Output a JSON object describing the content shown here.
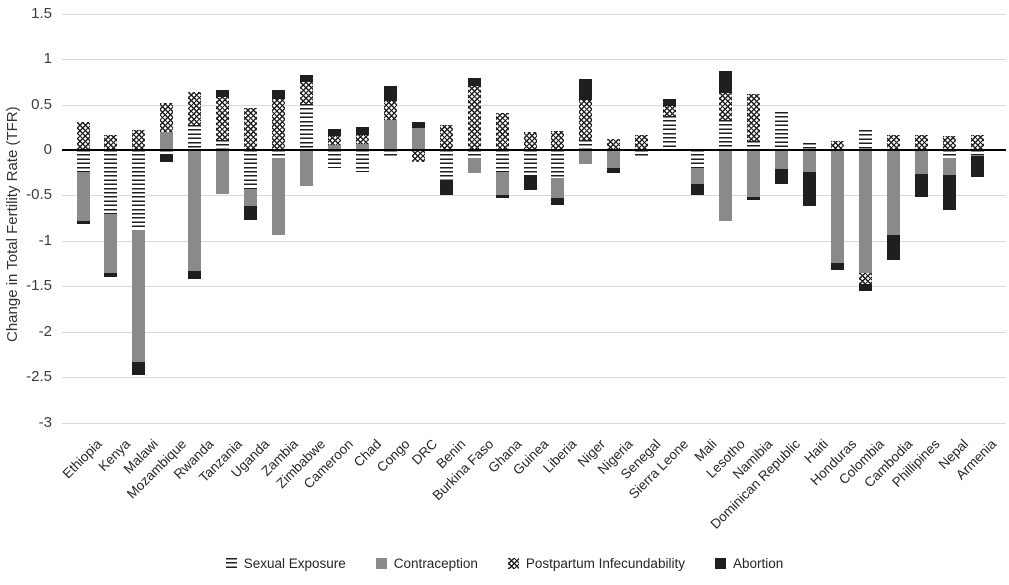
{
  "chart_data": {
    "type": "bar",
    "stacked": true,
    "title": "",
    "xlabel": "",
    "ylabel": "Change in Total Fertility Rate (TFR)",
    "ylim": [
      -3,
      1.5
    ],
    "yticks": [
      1.5,
      1,
      0.5,
      0,
      -0.5,
      -1,
      -1.5,
      -2,
      -2.5,
      -3
    ],
    "grid": true,
    "legend_position": "bottom",
    "categories": [
      "Ethiopia",
      "Kenya",
      "Malawi",
      "Mozambique",
      "Rwanda",
      "Tanzania",
      "Uganda",
      "Zambia",
      "Zimbabwe",
      "Cameroon",
      "Chad",
      "Congo",
      "DRC",
      "Benin",
      "Burkina Faso",
      "Ghana",
      "Guinea",
      "Liberia",
      "Niger",
      "Nigeria",
      "Senegal",
      "Sierra Leone",
      "Mali",
      "Lesotho",
      "Namibia",
      "Dominican Republic",
      "Haiti",
      "Honduras",
      "Colombia",
      "Cambodia",
      "Phillipines",
      "Nepal",
      "Armenia"
    ],
    "series": [
      {
        "name": "Sexual Exposure",
        "pattern": "horizontal-stripes",
        "values": [
          -0.24,
          -0.72,
          -0.88,
          -0.06,
          0.27,
          0.11,
          -0.44,
          -0.09,
          0.51,
          -0.2,
          -0.24,
          -0.08,
          0,
          -0.33,
          -0.1,
          -0.24,
          -0.27,
          -0.31,
          0.11,
          0,
          -0.08,
          0.37,
          -0.2,
          0.33,
          0.1,
          0.42,
          0.08,
          0,
          0.22,
          0,
          0,
          -0.1,
          -0.07
        ]
      },
      {
        "name": "Contraception",
        "pattern": "solid-gray",
        "values": [
          -0.54,
          -0.63,
          -1.45,
          0.2,
          -1.33,
          -0.48,
          -0.18,
          -0.84,
          -0.4,
          0.05,
          0.07,
          0.33,
          0.24,
          0,
          -0.15,
          -0.25,
          0,
          -0.22,
          -0.15,
          -0.2,
          0,
          0,
          -0.17,
          -0.78,
          -0.52,
          -0.21,
          -0.24,
          -1.24,
          -1.35,
          -0.93,
          -0.26,
          -0.18,
          0
        ]
      },
      {
        "name": "Postpartum Infecundability",
        "pattern": "crosshatch",
        "values": [
          0.31,
          0.16,
          0.22,
          0.32,
          0.37,
          0.47,
          0.46,
          0.56,
          0.24,
          0.1,
          0.09,
          0.21,
          -0.13,
          0.28,
          0.7,
          0.41,
          0.2,
          0.21,
          0.44,
          0.12,
          0.16,
          0.11,
          0,
          0.3,
          0.52,
          0,
          0,
          0.1,
          -0.12,
          0.16,
          0.16,
          0.15,
          0.17
        ]
      },
      {
        "name": "Abortion",
        "pattern": "solid-black",
        "values": [
          -0.03,
          -0.05,
          -0.15,
          -0.07,
          -0.09,
          0.08,
          -0.15,
          0.1,
          0.08,
          0.08,
          0.09,
          0.16,
          0.07,
          -0.16,
          0.09,
          -0.04,
          -0.17,
          -0.07,
          0.23,
          -0.05,
          0,
          0.08,
          -0.13,
          0.24,
          -0.03,
          -0.16,
          -0.38,
          -0.08,
          -0.08,
          -0.28,
          -0.26,
          -0.38,
          -0.23
        ]
      }
    ],
    "colors": {
      "gridline": "#d9d9d9",
      "zero_line": "#000000",
      "axis_text": "#3d3d3d",
      "contraception_fill": "#8a8a8a",
      "abortion_fill": "#1f1f1f",
      "pattern_ink": "#1f1f1f",
      "background": "#ffffff"
    }
  }
}
